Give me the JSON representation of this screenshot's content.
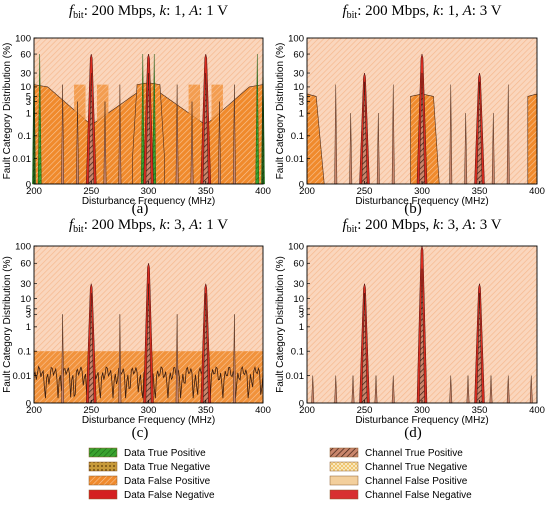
{
  "chart_data": [
    {
      "type": "area",
      "panel_label": "(a)",
      "title": {
        "prefix": "f",
        "subscript": "bit",
        "text": ": 200 Mbps, k: 1, A: 1 V"
      },
      "xlabel": "Disturbance Frequency (MHz)",
      "ylabel": "Fault Category Distribution (%)",
      "xlim": [
        200,
        400
      ],
      "x_ticks": [
        "200",
        "250",
        "300",
        "350",
        "400"
      ],
      "y_ticks": [
        "0",
        "0.01",
        "0.1",
        "1",
        "3",
        "5",
        "10",
        "30",
        "60",
        "100"
      ],
      "y_scale": "symlog",
      "base_level": 60,
      "mid_level": 12,
      "data_fp_floor": 0.01,
      "data_fp_humps": [
        [
          200,
          12
        ],
        [
          212,
          10
        ],
        [
          250,
          0.3
        ],
        [
          300,
          12
        ],
        [
          350,
          0.3
        ],
        [
          388,
          10
        ],
        [
          400,
          12
        ]
      ],
      "data_fp_center_peak": [
        [
          286,
          0.01
        ],
        [
          290,
          12
        ],
        [
          300,
          14
        ],
        [
          310,
          12
        ],
        [
          314,
          0.01
        ]
      ],
      "channel_fn_spikes": [
        [
          250,
          60
        ],
        [
          300,
          60
        ],
        [
          350,
          60
        ]
      ],
      "data_tp_spikes": [
        [
          200,
          60
        ],
        [
          205,
          60
        ],
        [
          295,
          60
        ],
        [
          305,
          60
        ],
        [
          395,
          60
        ],
        [
          400,
          60
        ]
      ],
      "secondary_spikes": [
        [
          225,
          12
        ],
        [
          275,
          12
        ],
        [
          325,
          12
        ],
        [
          375,
          12
        ],
        [
          262,
          3
        ],
        [
          238,
          3
        ],
        [
          338,
          3
        ],
        [
          362,
          3
        ]
      ]
    },
    {
      "type": "area",
      "panel_label": "(b)",
      "title": {
        "prefix": "f",
        "subscript": "bit",
        "text": ": 200 Mbps, k: 1, A: 3 V"
      },
      "xlabel": "Disturbance Frequency (MHz)",
      "ylabel": "Fault Category Distribution (%)",
      "xlim": [
        200,
        400
      ],
      "x_ticks": [
        "200",
        "250",
        "300",
        "350",
        "400"
      ],
      "y_ticks": [
        "0",
        "0.01",
        "0.1",
        "1",
        "3",
        "5",
        "10",
        "30",
        "60",
        "100"
      ],
      "y_scale": "symlog",
      "base_level": 100,
      "data_fp_humps": [
        [
          200,
          6
        ],
        [
          208,
          5
        ],
        [
          215,
          0
        ],
        [
          285,
          0
        ],
        [
          290,
          5
        ],
        [
          300,
          6
        ],
        [
          310,
          5
        ],
        [
          315,
          0
        ],
        [
          385,
          0
        ],
        [
          392,
          5
        ],
        [
          400,
          6
        ]
      ],
      "channel_fn_spikes": [
        [
          250,
          30
        ],
        [
          300,
          60
        ],
        [
          350,
          30
        ]
      ],
      "secondary_spikes": [
        [
          225,
          12
        ],
        [
          275,
          12
        ],
        [
          325,
          12
        ],
        [
          375,
          12
        ],
        [
          238,
          1
        ],
        [
          262,
          1
        ],
        [
          338,
          1
        ],
        [
          362,
          1
        ]
      ]
    },
    {
      "type": "area",
      "panel_label": "(c)",
      "title": {
        "prefix": "f",
        "subscript": "bit",
        "text": ": 200 Mbps, k: 3, A: 1 V"
      },
      "xlabel": "Disturbance Frequency (MHz)",
      "ylabel": "Fault Category Distribution (%)",
      "xlim": [
        200,
        400
      ],
      "x_ticks": [
        "200",
        "250",
        "300",
        "350",
        "400"
      ],
      "y_ticks": [
        "0",
        "0.01",
        "0.1",
        "1",
        "3",
        "5",
        "10",
        "30",
        "60",
        "100"
      ],
      "y_scale": "symlog",
      "base_level": 100,
      "noise_level": 0.01,
      "data_fp_floor": 0.1,
      "channel_fn_spikes": [
        [
          250,
          30
        ],
        [
          300,
          60
        ],
        [
          350,
          30
        ]
      ],
      "secondary_spikes": [
        [
          225,
          3
        ],
        [
          275,
          3
        ],
        [
          325,
          3
        ],
        [
          375,
          3
        ]
      ]
    },
    {
      "type": "area",
      "panel_label": "(d)",
      "title": {
        "prefix": "f",
        "subscript": "bit",
        "text": ": 200 Mbps, k: 3, A: 3 V"
      },
      "xlabel": "Disturbance Frequency (MHz)",
      "ylabel": "Fault Category Distribution (%)",
      "xlim": [
        200,
        400
      ],
      "x_ticks": [
        "200",
        "250",
        "300",
        "350",
        "400"
      ],
      "y_ticks": [
        "0",
        "0.01",
        "0.1",
        "1",
        "3",
        "5",
        "10",
        "30",
        "60",
        "100"
      ],
      "y_scale": "symlog",
      "base_level": 100,
      "channel_fn_spikes": [
        [
          250,
          30
        ],
        [
          300,
          100
        ],
        [
          350,
          30
        ]
      ],
      "secondary_spikes": [
        [
          205,
          0.01
        ],
        [
          225,
          0.01
        ],
        [
          240,
          0.01
        ],
        [
          260,
          0.01
        ],
        [
          275,
          0.01
        ],
        [
          325,
          0.01
        ],
        [
          340,
          0.01
        ],
        [
          360,
          0.01
        ],
        [
          375,
          0.01
        ],
        [
          395,
          0.01
        ]
      ]
    }
  ],
  "legend": [
    {
      "label": "Data True Positive",
      "color": "#3aa32f",
      "pattern": "diag"
    },
    {
      "label": "Channel True Positive",
      "color": "#9a5a44",
      "pattern": "diag"
    },
    {
      "label": "Data True Negative",
      "color": "#8a6a1a",
      "pattern": "dots"
    },
    {
      "label": "Channel True Negative",
      "color": "#f0d080",
      "pattern": "cross"
    },
    {
      "label": "Data False Positive",
      "color": "#f07a20",
      "pattern": "diag"
    },
    {
      "label": "Channel False Positive",
      "color": "#f3cf9c",
      "pattern": "none"
    },
    {
      "label": "Data False Negative",
      "color": "#d42020",
      "pattern": "none"
    },
    {
      "label": "Channel False Negative",
      "color": "#d83030",
      "pattern": "none"
    }
  ],
  "colors": {
    "background_fill": "#fad3b8",
    "data_false_positive": "#f0892c",
    "channel_false_negative": "#d92c20",
    "data_true_positive": "#3aa32f",
    "line": "#4a2a1a"
  }
}
